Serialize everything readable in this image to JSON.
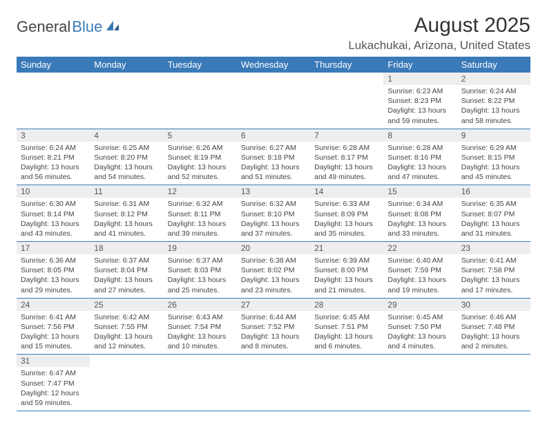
{
  "logo": {
    "text1": "General",
    "text2": "Blue"
  },
  "header": {
    "month_title": "August 2025",
    "location": "Lukachukai, Arizona, United States"
  },
  "colors": {
    "header_bg": "#3a7ab8",
    "header_fg": "#ffffff",
    "daynum_bg": "#eeeeee",
    "row_border": "#3a7ab8",
    "body_bg": "#ffffff",
    "text": "#444444"
  },
  "daysOfWeek": [
    "Sunday",
    "Monday",
    "Tuesday",
    "Wednesday",
    "Thursday",
    "Friday",
    "Saturday"
  ],
  "weeks": [
    [
      null,
      null,
      null,
      null,
      null,
      {
        "n": "1",
        "sr": "Sunrise: 6:23 AM",
        "ss": "Sunset: 8:23 PM",
        "dl1": "Daylight: 13 hours",
        "dl2": "and 59 minutes."
      },
      {
        "n": "2",
        "sr": "Sunrise: 6:24 AM",
        "ss": "Sunset: 8:22 PM",
        "dl1": "Daylight: 13 hours",
        "dl2": "and 58 minutes."
      }
    ],
    [
      {
        "n": "3",
        "sr": "Sunrise: 6:24 AM",
        "ss": "Sunset: 8:21 PM",
        "dl1": "Daylight: 13 hours",
        "dl2": "and 56 minutes."
      },
      {
        "n": "4",
        "sr": "Sunrise: 6:25 AM",
        "ss": "Sunset: 8:20 PM",
        "dl1": "Daylight: 13 hours",
        "dl2": "and 54 minutes."
      },
      {
        "n": "5",
        "sr": "Sunrise: 6:26 AM",
        "ss": "Sunset: 8:19 PM",
        "dl1": "Daylight: 13 hours",
        "dl2": "and 52 minutes."
      },
      {
        "n": "6",
        "sr": "Sunrise: 6:27 AM",
        "ss": "Sunset: 8:18 PM",
        "dl1": "Daylight: 13 hours",
        "dl2": "and 51 minutes."
      },
      {
        "n": "7",
        "sr": "Sunrise: 6:28 AM",
        "ss": "Sunset: 8:17 PM",
        "dl1": "Daylight: 13 hours",
        "dl2": "and 49 minutes."
      },
      {
        "n": "8",
        "sr": "Sunrise: 6:28 AM",
        "ss": "Sunset: 8:16 PM",
        "dl1": "Daylight: 13 hours",
        "dl2": "and 47 minutes."
      },
      {
        "n": "9",
        "sr": "Sunrise: 6:29 AM",
        "ss": "Sunset: 8:15 PM",
        "dl1": "Daylight: 13 hours",
        "dl2": "and 45 minutes."
      }
    ],
    [
      {
        "n": "10",
        "sr": "Sunrise: 6:30 AM",
        "ss": "Sunset: 8:14 PM",
        "dl1": "Daylight: 13 hours",
        "dl2": "and 43 minutes."
      },
      {
        "n": "11",
        "sr": "Sunrise: 6:31 AM",
        "ss": "Sunset: 8:12 PM",
        "dl1": "Daylight: 13 hours",
        "dl2": "and 41 minutes."
      },
      {
        "n": "12",
        "sr": "Sunrise: 6:32 AM",
        "ss": "Sunset: 8:11 PM",
        "dl1": "Daylight: 13 hours",
        "dl2": "and 39 minutes."
      },
      {
        "n": "13",
        "sr": "Sunrise: 6:32 AM",
        "ss": "Sunset: 8:10 PM",
        "dl1": "Daylight: 13 hours",
        "dl2": "and 37 minutes."
      },
      {
        "n": "14",
        "sr": "Sunrise: 6:33 AM",
        "ss": "Sunset: 8:09 PM",
        "dl1": "Daylight: 13 hours",
        "dl2": "and 35 minutes."
      },
      {
        "n": "15",
        "sr": "Sunrise: 6:34 AM",
        "ss": "Sunset: 8:08 PM",
        "dl1": "Daylight: 13 hours",
        "dl2": "and 33 minutes."
      },
      {
        "n": "16",
        "sr": "Sunrise: 6:35 AM",
        "ss": "Sunset: 8:07 PM",
        "dl1": "Daylight: 13 hours",
        "dl2": "and 31 minutes."
      }
    ],
    [
      {
        "n": "17",
        "sr": "Sunrise: 6:36 AM",
        "ss": "Sunset: 8:05 PM",
        "dl1": "Daylight: 13 hours",
        "dl2": "and 29 minutes."
      },
      {
        "n": "18",
        "sr": "Sunrise: 6:37 AM",
        "ss": "Sunset: 8:04 PM",
        "dl1": "Daylight: 13 hours",
        "dl2": "and 27 minutes."
      },
      {
        "n": "19",
        "sr": "Sunrise: 6:37 AM",
        "ss": "Sunset: 8:03 PM",
        "dl1": "Daylight: 13 hours",
        "dl2": "and 25 minutes."
      },
      {
        "n": "20",
        "sr": "Sunrise: 6:38 AM",
        "ss": "Sunset: 8:02 PM",
        "dl1": "Daylight: 13 hours",
        "dl2": "and 23 minutes."
      },
      {
        "n": "21",
        "sr": "Sunrise: 6:39 AM",
        "ss": "Sunset: 8:00 PM",
        "dl1": "Daylight: 13 hours",
        "dl2": "and 21 minutes."
      },
      {
        "n": "22",
        "sr": "Sunrise: 6:40 AM",
        "ss": "Sunset: 7:59 PM",
        "dl1": "Daylight: 13 hours",
        "dl2": "and 19 minutes."
      },
      {
        "n": "23",
        "sr": "Sunrise: 6:41 AM",
        "ss": "Sunset: 7:58 PM",
        "dl1": "Daylight: 13 hours",
        "dl2": "and 17 minutes."
      }
    ],
    [
      {
        "n": "24",
        "sr": "Sunrise: 6:41 AM",
        "ss": "Sunset: 7:56 PM",
        "dl1": "Daylight: 13 hours",
        "dl2": "and 15 minutes."
      },
      {
        "n": "25",
        "sr": "Sunrise: 6:42 AM",
        "ss": "Sunset: 7:55 PM",
        "dl1": "Daylight: 13 hours",
        "dl2": "and 12 minutes."
      },
      {
        "n": "26",
        "sr": "Sunrise: 6:43 AM",
        "ss": "Sunset: 7:54 PM",
        "dl1": "Daylight: 13 hours",
        "dl2": "and 10 minutes."
      },
      {
        "n": "27",
        "sr": "Sunrise: 6:44 AM",
        "ss": "Sunset: 7:52 PM",
        "dl1": "Daylight: 13 hours",
        "dl2": "and 8 minutes."
      },
      {
        "n": "28",
        "sr": "Sunrise: 6:45 AM",
        "ss": "Sunset: 7:51 PM",
        "dl1": "Daylight: 13 hours",
        "dl2": "and 6 minutes."
      },
      {
        "n": "29",
        "sr": "Sunrise: 6:45 AM",
        "ss": "Sunset: 7:50 PM",
        "dl1": "Daylight: 13 hours",
        "dl2": "and 4 minutes."
      },
      {
        "n": "30",
        "sr": "Sunrise: 6:46 AM",
        "ss": "Sunset: 7:48 PM",
        "dl1": "Daylight: 13 hours",
        "dl2": "and 2 minutes."
      }
    ],
    [
      {
        "n": "31",
        "sr": "Sunrise: 6:47 AM",
        "ss": "Sunset: 7:47 PM",
        "dl1": "Daylight: 12 hours",
        "dl2": "and 59 minutes."
      },
      null,
      null,
      null,
      null,
      null,
      null
    ]
  ]
}
